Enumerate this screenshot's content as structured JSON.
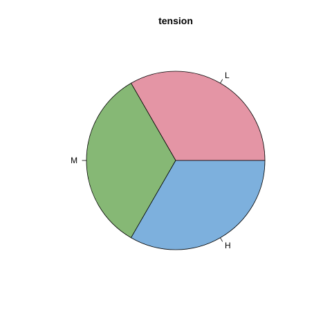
{
  "chart_data": {
    "type": "pie",
    "title": "tension",
    "categories": [
      "L",
      "M",
      "H"
    ],
    "values": [
      18,
      18,
      18
    ],
    "colors": [
      "#E495A5",
      "#86B875",
      "#7DB0DD"
    ],
    "start_angle_deg": 0,
    "direction": "counterclockwise",
    "legend": "none"
  }
}
